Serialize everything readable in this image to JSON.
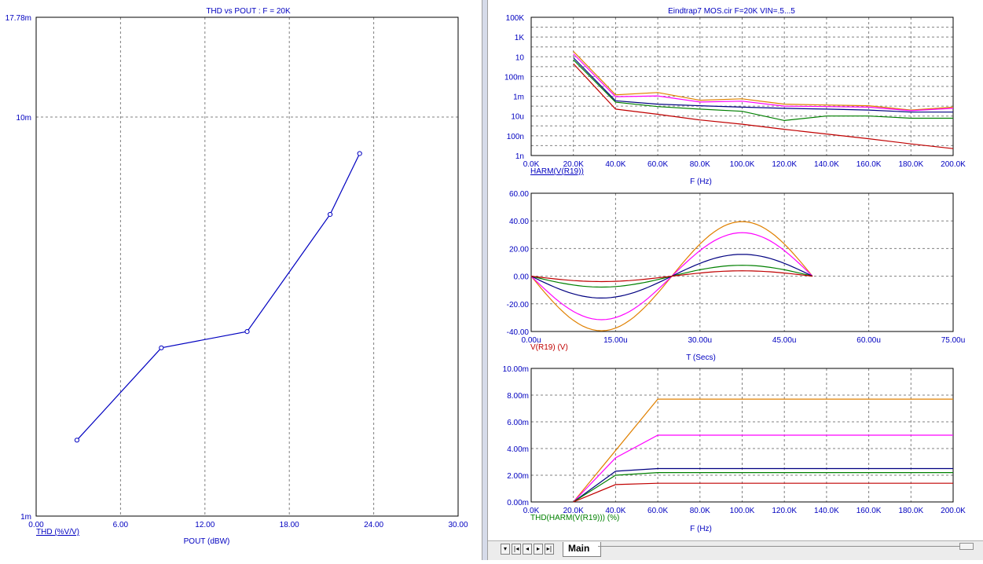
{
  "left_plot": {
    "title": "THD vs POUT : F = 20K",
    "x_axis_label": "POUT (dBW)",
    "y_label_trace": "THD (%V/V)",
    "x_ticks": [
      "0.00",
      "6.00",
      "12.00",
      "18.00",
      "24.00",
      "30.00"
    ],
    "y_ticks": [
      "17.78m",
      "10m",
      "1m"
    ]
  },
  "top_right_plot": {
    "title": "Eindtrap7 MOS.cir F=20K VIN=.5...5",
    "x_axis_label": "F (Hz)",
    "y_label_trace": "HARM(V(R19))",
    "x_ticks": [
      "0.0K",
      "20.0K",
      "40.0K",
      "60.0K",
      "80.0K",
      "100.0K",
      "120.0K",
      "140.0K",
      "160.0K",
      "180.0K",
      "200.0K"
    ],
    "y_ticks": [
      "100K",
      "1K",
      "10",
      "100m",
      "1m",
      "10u",
      "100n",
      "1n"
    ]
  },
  "mid_right_plot": {
    "x_axis_label": "T (Secs)",
    "y_label_trace": "V(R19) (V)",
    "x_ticks": [
      "0.00u",
      "15.00u",
      "30.00u",
      "45.00u",
      "60.00u",
      "75.00u"
    ],
    "y_ticks": [
      "60.00",
      "40.00",
      "20.00",
      "0.00",
      "-20.00",
      "-40.00"
    ]
  },
  "bottom_right_plot": {
    "x_axis_label": "F (Hz)",
    "y_label_trace": "THD(HARM(V(R19))) (%)",
    "x_ticks": [
      "0.0K",
      "20.0K",
      "40.0K",
      "60.0K",
      "80.0K",
      "100.0K",
      "120.0K",
      "140.0K",
      "160.0K",
      "180.0K",
      "200.0K"
    ],
    "y_ticks": [
      "10.00m",
      "8.00m",
      "6.00m",
      "4.00m",
      "2.00m",
      "0.00m"
    ]
  },
  "tabs": {
    "main_label": "Main"
  },
  "nav_icons": [
    "menu-down-icon",
    "first-icon",
    "prev-icon",
    "next-icon",
    "last-icon"
  ],
  "nav_glyphs": [
    "▾",
    "|◂",
    "◂",
    "▸",
    "▸|"
  ],
  "colors": {
    "axis_text": "#0000c0",
    "trace_label_left": "#0000c0",
    "trace_label_mid": "#c00000",
    "trace_label_bottom": "#008000",
    "series": [
      "#e08000",
      "#ff00ff",
      "#000080",
      "#008000",
      "#c00000"
    ]
  },
  "chart_data": [
    {
      "type": "line",
      "title": "THD vs POUT : F = 20K",
      "xlabel": "POUT (dBW)",
      "ylabel": "THD (%V/V)",
      "xlim": [
        0,
        30
      ],
      "ylim": [
        0.001,
        0.01778
      ],
      "yscale": "log",
      "grid": true,
      "series": [
        {
          "name": "THD (%V/V)",
          "color": "#0000c0",
          "markers": true,
          "points": [
            [
              2.9,
              0.00155
            ],
            [
              8.9,
              0.00264
            ],
            [
              15.0,
              0.0029
            ],
            [
              20.9,
              0.0057
            ],
            [
              23.0,
              0.0081
            ]
          ]
        }
      ]
    },
    {
      "type": "line",
      "title": "Eindtrap7 MOS.cir F=20K VIN=.5...5",
      "xlabel": "F (Hz)",
      "ylabel": "HARM(V(R19))",
      "xlim": [
        0,
        200000
      ],
      "ylim": [
        1e-09,
        100000
      ],
      "yscale": "log",
      "grid": true,
      "series": [
        {
          "color": "#e08000",
          "points": [
            [
              20000,
              35
            ],
            [
              40000,
              0.0014
            ],
            [
              60000,
              0.0024
            ],
            [
              80000,
              0.0004
            ],
            [
              100000,
              0.00055
            ],
            [
              120000,
              0.00016
            ],
            [
              140000,
              0.00013
            ],
            [
              160000,
              0.00011
            ],
            [
              180000,
              4e-05
            ],
            [
              200000,
              8e-05
            ]
          ]
        },
        {
          "color": "#ff00ff",
          "points": [
            [
              20000,
              20
            ],
            [
              40000,
              0.0009
            ],
            [
              60000,
              0.0011
            ],
            [
              80000,
              0.00026
            ],
            [
              100000,
              0.00032
            ],
            [
              120000,
              0.0001
            ],
            [
              140000,
              9e-05
            ],
            [
              160000,
              8e-05
            ],
            [
              180000,
              3.5e-05
            ],
            [
              200000,
              6e-05
            ]
          ]
        },
        {
          "color": "#000080",
          "points": [
            [
              20000,
              8
            ],
            [
              40000,
              0.00035
            ],
            [
              60000,
              0.00016
            ],
            [
              80000,
              0.00011
            ],
            [
              100000,
              8e-05
            ],
            [
              120000,
              6e-05
            ],
            [
              140000,
              5e-05
            ],
            [
              160000,
              4e-05
            ],
            [
              180000,
              2.5e-05
            ],
            [
              200000,
              2.5e-05
            ]
          ]
        },
        {
          "color": "#008000",
          "points": [
            [
              20000,
              5
            ],
            [
              40000,
              0.00025
            ],
            [
              60000,
              9e-05
            ],
            [
              80000,
              5e-05
            ],
            [
              100000,
              3e-05
            ],
            [
              120000,
              3.5e-06
            ],
            [
              140000,
              1e-05
            ],
            [
              160000,
              1e-05
            ],
            [
              180000,
              6e-06
            ],
            [
              200000,
              6e-06
            ]
          ]
        },
        {
          "color": "#c00000",
          "points": [
            [
              20000,
              2
            ],
            [
              40000,
              5e-05
            ],
            [
              60000,
              1.5e-05
            ],
            [
              80000,
              4e-06
            ],
            [
              100000,
              1.5e-06
            ],
            [
              120000,
              4.5e-07
            ],
            [
              140000,
              1.5e-07
            ],
            [
              160000,
              5e-08
            ],
            [
              180000,
              1.5e-08
            ],
            [
              200000,
              5e-09
            ]
          ]
        }
      ]
    },
    {
      "type": "line",
      "xlabel": "T (Secs)",
      "ylabel": "V(R19) (V)",
      "xlim": [
        0,
        7.5e-05
      ],
      "ylim": [
        -40,
        60
      ],
      "grid": true,
      "sine_traces": {
        "period": 5e-05,
        "points_per_trace": 60
      },
      "series": [
        {
          "color": "#e08000",
          "amplitude": 39.5
        },
        {
          "color": "#ff00ff",
          "amplitude": 31.5
        },
        {
          "color": "#000080",
          "amplitude": 15.8
        },
        {
          "color": "#008000",
          "amplitude": 7.9
        },
        {
          "color": "#c00000",
          "amplitude": 3.9
        }
      ]
    },
    {
      "type": "line",
      "xlabel": "F (Hz)",
      "ylabel": "THD(HARM(V(R19))) (%)",
      "xlim": [
        0,
        200000
      ],
      "ylim": [
        0,
        0.01
      ],
      "grid": true,
      "series": [
        {
          "color": "#e08000",
          "points": [
            [
              20000,
              0
            ],
            [
              60000,
              0.0077
            ],
            [
              200000,
              0.0077
            ]
          ]
        },
        {
          "color": "#ff00ff",
          "points": [
            [
              20000,
              0
            ],
            [
              40000,
              0.0033
            ],
            [
              60000,
              0.005
            ],
            [
              200000,
              0.005
            ]
          ]
        },
        {
          "color": "#000080",
          "points": [
            [
              20000,
              0
            ],
            [
              40000,
              0.0023
            ],
            [
              60000,
              0.0025
            ],
            [
              200000,
              0.0025
            ]
          ]
        },
        {
          "color": "#008000",
          "points": [
            [
              20000,
              0
            ],
            [
              40000,
              0.002
            ],
            [
              60000,
              0.0022
            ],
            [
              200000,
              0.0022
            ]
          ]
        },
        {
          "color": "#c00000",
          "points": [
            [
              20000,
              0
            ],
            [
              40000,
              0.0013
            ],
            [
              60000,
              0.0014
            ],
            [
              200000,
              0.0014
            ]
          ]
        }
      ]
    }
  ]
}
